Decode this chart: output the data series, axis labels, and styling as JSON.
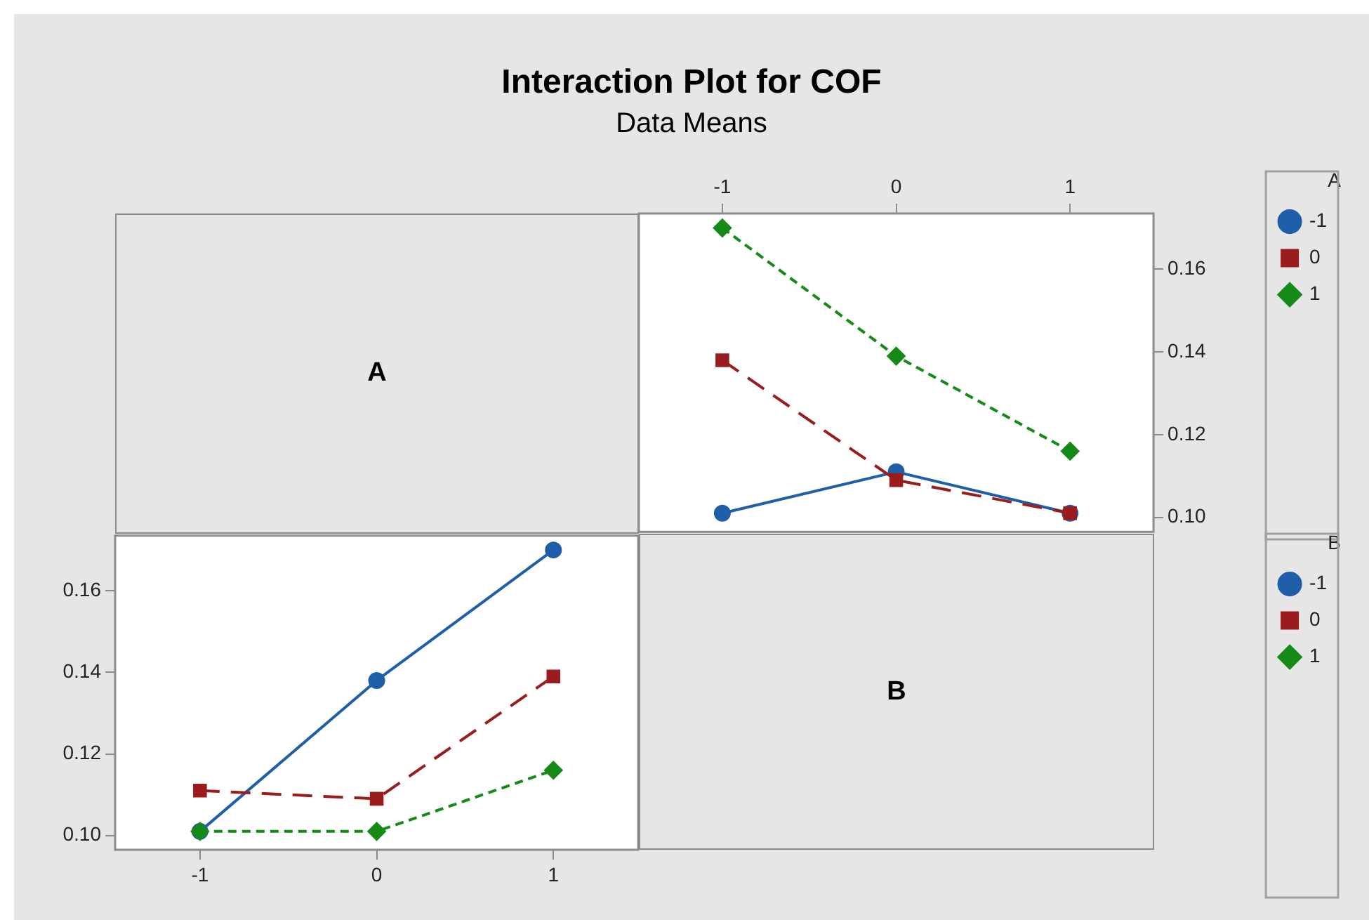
{
  "chart_data": [
    {
      "type": "other",
      "title": "Interaction Plot for COF",
      "subtitle": "Data Means"
    },
    {
      "type": "other",
      "annotations": [
        "A"
      ]
    },
    {
      "type": "line",
      "x": [
        -1,
        0,
        1
      ],
      "xlim": [
        -1.48,
        1.48
      ],
      "xticks": [
        -1,
        0,
        1
      ],
      "ylim": [
        0.0965,
        0.1735
      ],
      "yticks": [
        {
          "value": 0.1,
          "label": "0.10"
        },
        0.12,
        0.14,
        0.16
      ],
      "legend": "right",
      "legend_title": "A",
      "series": [
        {
          "name": "-1",
          "color": "#1f5faa",
          "values": [
            0.101,
            0.111,
            0.101
          ],
          "marker": "circle",
          "line_style": "solid"
        },
        {
          "name": "0",
          "color": "#9b1c1c",
          "values": [
            0.138,
            0.109,
            0.101
          ],
          "marker": "square",
          "line_style": "dashed"
        },
        {
          "name": "1",
          "color": "#168a16",
          "values": [
            0.17,
            0.139,
            0.116
          ],
          "marker": "diamond",
          "line_style": "dashed"
        }
      ]
    },
    {
      "type": "line",
      "x": [
        -1,
        0,
        1
      ],
      "xlim": [
        -1.48,
        1.48
      ],
      "xticks": [
        -1,
        0,
        1
      ],
      "ylim": [
        0.0965,
        0.1735
      ],
      "yticks": [
        {
          "value": 0.1,
          "label": "0.10"
        },
        0.12,
        0.14,
        0.16
      ],
      "legend": "right",
      "legend_title": "B",
      "series": [
        {
          "name": "-1",
          "color": "#1f5faa",
          "values": [
            0.101,
            0.138,
            0.17
          ],
          "marker": "circle",
          "line_style": "solid"
        },
        {
          "name": "0",
          "color": "#9b1c1c",
          "values": [
            0.111,
            0.109,
            0.139
          ],
          "marker": "square",
          "line_style": "dashed"
        },
        {
          "name": "1",
          "color": "#168a16",
          "values": [
            0.101,
            0.101,
            0.116
          ],
          "marker": "diamond",
          "line_style": "dashed"
        }
      ]
    },
    {
      "type": "other",
      "annotations": [
        "B"
      ]
    }
  ]
}
